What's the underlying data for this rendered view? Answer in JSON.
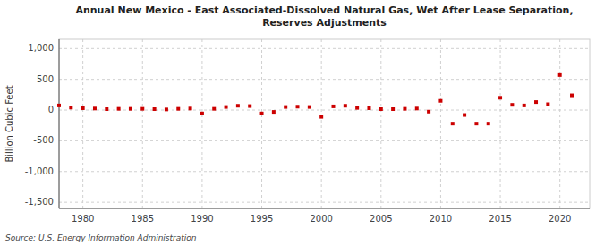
{
  "chart_data": {
    "type": "scatter",
    "title": "Annual New Mexico - East Associated-Dissolved Natural Gas, Wet After Lease Separation,\nReserves Adjustments",
    "y_label": "Billion Cubic Feet",
    "annotations": [
      "Source: U.S. Energy Information Administration"
    ],
    "x": [
      1978,
      1979,
      1980,
      1981,
      1982,
      1983,
      1984,
      1985,
      1986,
      1987,
      1988,
      1989,
      1990,
      1991,
      1992,
      1993,
      1994,
      1995,
      1996,
      1997,
      1998,
      1999,
      2000,
      2001,
      2002,
      2003,
      2004,
      2005,
      2006,
      2007,
      2008,
      2009,
      2010,
      2011,
      2012,
      2013,
      2014,
      2015,
      2016,
      2017,
      2018,
      2019,
      2020,
      2021
    ],
    "values": [
      75,
      40,
      30,
      25,
      15,
      20,
      20,
      20,
      15,
      10,
      20,
      25,
      -55,
      20,
      50,
      70,
      65,
      -55,
      -30,
      50,
      55,
      50,
      -110,
      60,
      70,
      35,
      30,
      15,
      15,
      20,
      25,
      -25,
      150,
      -220,
      -80,
      -220,
      -220,
      200,
      85,
      75,
      130,
      95,
      570,
      240
    ],
    "color": "#cc0000",
    "marker": "square",
    "xlim": [
      1978.0,
      2022.5
    ],
    "xticks": [
      1980,
      1985,
      1990,
      1995,
      2000,
      2005,
      2010,
      2015,
      2020
    ],
    "ylim": [
      -1600,
      1150
    ],
    "yticks": [
      {
        "value": -1500,
        "label": "-1,500"
      },
      {
        "value": -1000,
        "label": "-1,000"
      },
      -500,
      0,
      500,
      {
        "value": 1000,
        "label": "1,000"
      }
    ],
    "grid": true
  }
}
